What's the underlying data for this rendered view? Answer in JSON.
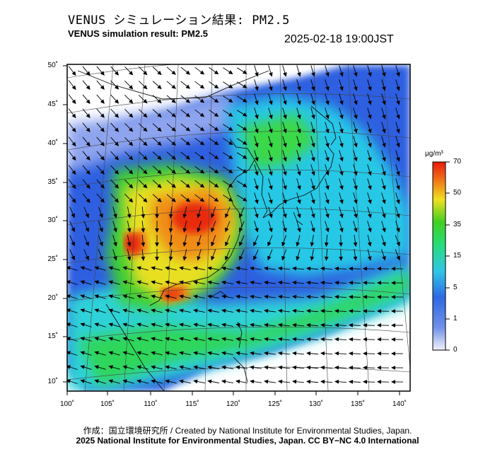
{
  "header": {
    "title_jp": "VENUS シミュレーション結果: PM2.5",
    "title_en": "VENUS simulation result: PM2.5",
    "timestamp": "2025-02-18 19:00JST"
  },
  "map": {
    "lat_ticks": [
      "50˚",
      "45˚",
      "40˚",
      "35˚",
      "30˚",
      "25˚",
      "20˚",
      "15˚",
      "10˚"
    ],
    "lon_ticks": [
      "100˚",
      "105˚",
      "110˚",
      "115˚",
      "120˚",
      "125˚",
      "130˚",
      "135˚",
      "140˚"
    ]
  },
  "colorbar": {
    "unit": "μg/m³",
    "ticks": [
      "70",
      "50",
      "35",
      "15",
      "5",
      "1",
      "0"
    ],
    "colors": [
      "#f2f2fa",
      "#3c6ee6",
      "#2fb4e8",
      "#27e0c8",
      "#2ed63a",
      "#f0e020",
      "#f07818",
      "#e81a0a"
    ]
  },
  "footer": {
    "credit": "作成：国立環境研究所 / Created by National Institute for Environmental Studies, Japan.",
    "copyright": "2025 National Institute for Environmental Studies, Japan. CC BY−NC 4.0 International"
  }
}
